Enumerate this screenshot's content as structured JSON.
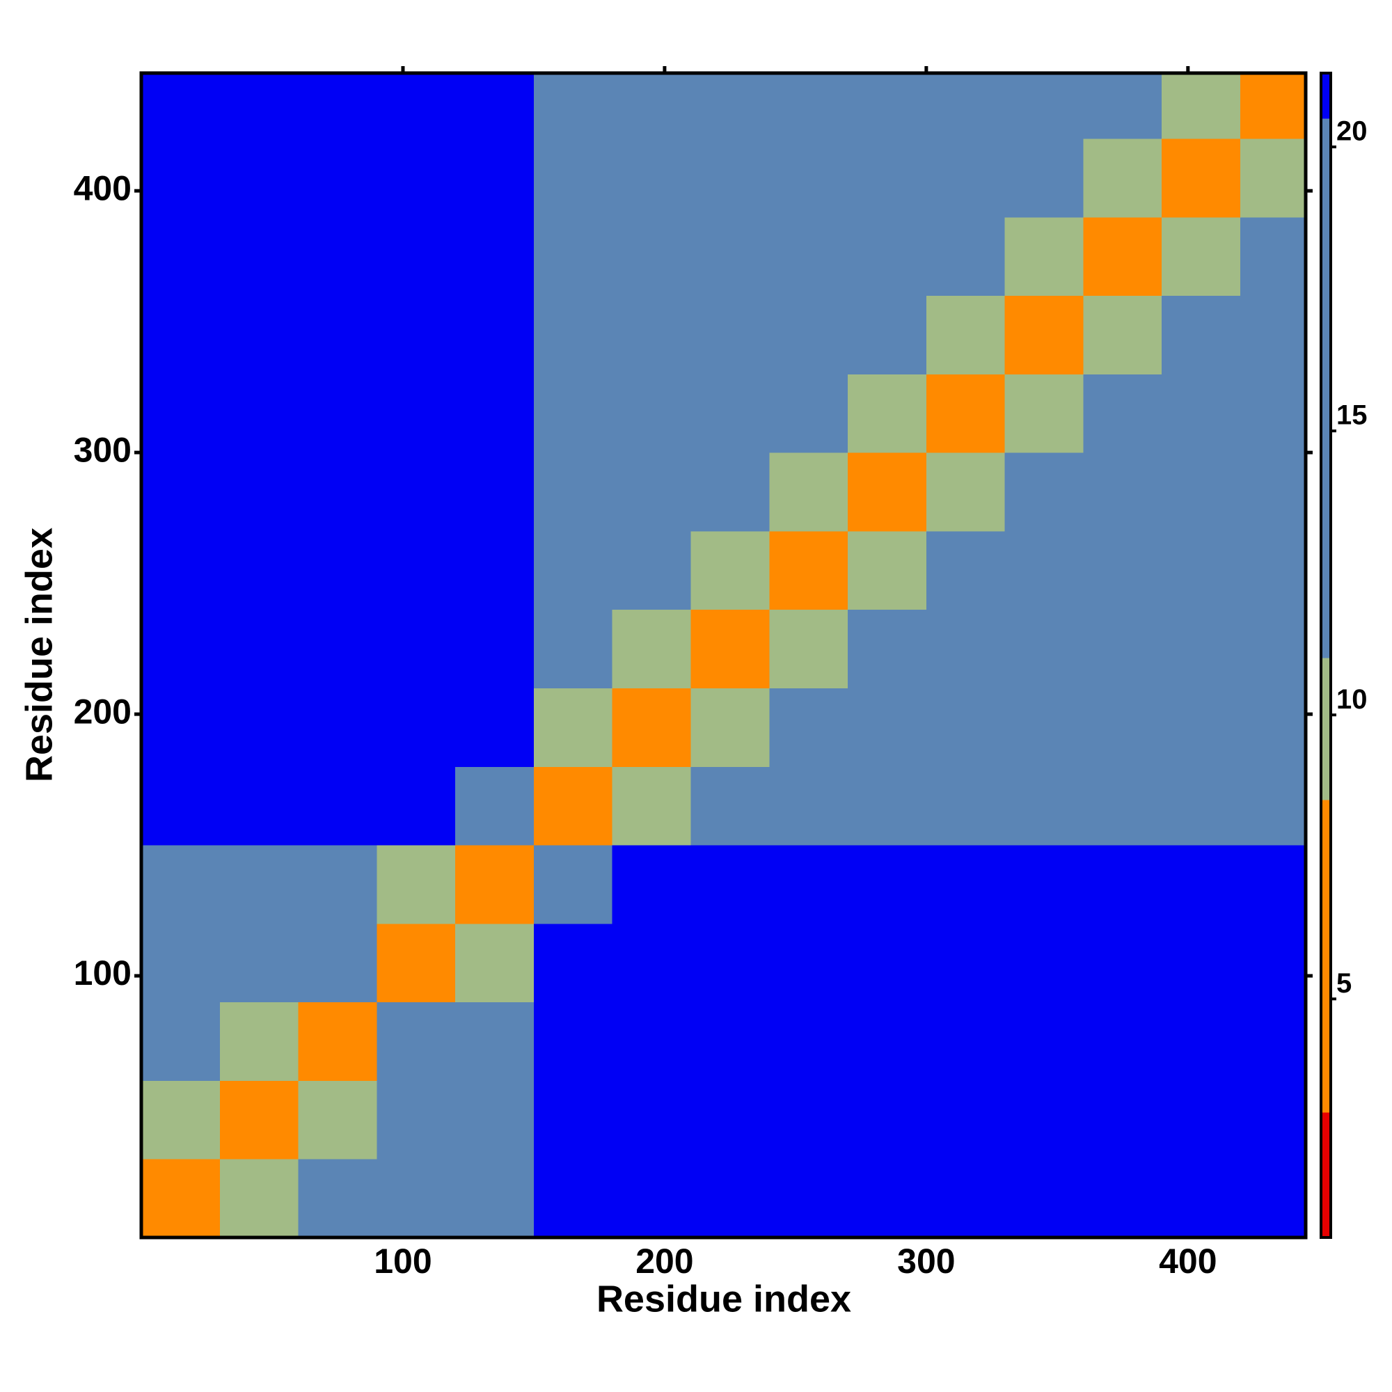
{
  "chart_data": {
    "type": "heatmap",
    "x_label": "Residue index",
    "y_label": "Residue index",
    "xlim": [
      0,
      445
    ],
    "ylim": [
      0,
      445
    ],
    "xticks": [
      100,
      200,
      300,
      400
    ],
    "yticks": [
      100,
      200,
      300,
      400
    ],
    "x_bins": [
      0,
      30,
      60,
      90,
      120,
      150,
      180,
      210,
      240,
      270,
      300,
      330,
      360,
      390,
      420,
      445
    ],
    "y_bins": [
      0,
      30,
      60,
      90,
      120,
      150,
      180,
      210,
      240,
      270,
      300,
      330,
      360,
      390,
      420,
      445
    ],
    "z": [
      [
        6,
        10,
        15,
        18,
        19,
        21,
        21,
        21,
        21,
        21,
        21,
        21,
        21,
        21,
        21
      ],
      [
        10,
        6,
        10,
        18,
        19,
        21,
        21,
        21,
        21,
        21,
        21,
        21,
        21,
        21,
        21
      ],
      [
        15,
        10,
        6,
        18,
        19,
        21,
        21,
        21,
        21,
        21,
        21,
        21,
        21,
        21,
        21
      ],
      [
        18,
        18,
        18,
        6,
        10,
        21,
        21,
        21,
        21,
        21,
        21,
        21,
        21,
        21,
        21
      ],
      [
        19,
        19,
        19,
        10,
        6,
        16,
        21,
        21,
        21,
        21,
        21,
        21,
        21,
        21,
        21
      ],
      [
        21,
        21,
        21,
        21,
        16,
        6,
        10,
        16,
        16,
        16,
        16,
        16,
        16,
        16,
        20
      ],
      [
        21,
        21,
        21,
        21,
        21,
        10,
        6,
        10,
        16,
        16,
        16,
        16,
        16,
        16,
        20
      ],
      [
        21,
        21,
        21,
        21,
        21,
        16,
        10,
        6,
        10,
        16,
        16,
        16,
        16,
        16,
        20
      ],
      [
        21,
        21,
        21,
        21,
        21,
        16,
        16,
        10,
        6,
        10,
        16,
        16,
        16,
        16,
        20
      ],
      [
        21,
        21,
        21,
        21,
        21,
        16,
        16,
        16,
        10,
        6,
        10,
        16,
        16,
        16,
        20
      ],
      [
        21,
        21,
        21,
        21,
        21,
        16,
        16,
        16,
        16,
        10,
        6,
        10,
        16,
        16,
        20
      ],
      [
        21,
        21,
        21,
        21,
        21,
        16,
        16,
        16,
        16,
        16,
        10,
        6,
        10,
        16,
        20
      ],
      [
        21,
        21,
        21,
        21,
        21,
        16,
        16,
        16,
        16,
        16,
        16,
        10,
        6,
        10,
        18
      ],
      [
        21,
        21,
        21,
        21,
        21,
        16,
        16,
        16,
        16,
        16,
        16,
        16,
        10,
        6,
        10
      ],
      [
        21,
        21,
        21,
        21,
        21,
        20,
        20,
        20,
        20,
        20,
        20,
        20,
        18,
        10,
        6
      ]
    ],
    "colorbar": {
      "lim": [
        0.8,
        21.3
      ],
      "ticks": [
        5,
        10,
        15,
        20
      ],
      "segments": [
        {
          "from": 0.8,
          "to": 3,
          "color": "#e60000"
        },
        {
          "from": 3,
          "to": 8.5,
          "color": "#ff8a00"
        },
        {
          "from": 8.5,
          "to": 11,
          "color": "#a2bb86"
        },
        {
          "from": 11,
          "to": 20.5,
          "color": "#5b85b5"
        },
        {
          "from": 20.5,
          "to": 21.3,
          "color": "#0000f5"
        }
      ]
    }
  }
}
